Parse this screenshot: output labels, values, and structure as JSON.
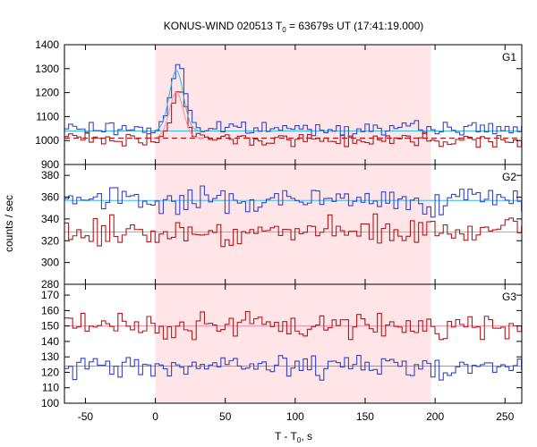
{
  "chart_data": {
    "type": "line",
    "title": "KONUS-WIND 020513 T",
    "title_sub": "0",
    "title_rest": " = 63679s UT (17:41:19.000)",
    "xlabel": "T - T",
    "xlabel_sub": "0",
    "xlabel_rest": ", s",
    "ylabel": "counts / sec",
    "xlim": [
      -65,
      262
    ],
    "x_ticks": [
      "-50",
      "0",
      "50",
      "100",
      "150",
      "200",
      "250"
    ],
    "x_tick_values": [
      -50,
      0,
      50,
      100,
      150,
      200,
      250
    ],
    "highlight_interval": [
      0,
      197
    ],
    "colors": {
      "blue": "#3344cc",
      "red": "#b01a1a",
      "pink": "#ff88aa",
      "cyan": "#33bbee",
      "shade": "#ffe5e8"
    },
    "panels": [
      {
        "label": "G1",
        "ylim": [
          900,
          1400
        ],
        "y_tick_values": [
          900,
          1000,
          1100,
          1200,
          1300,
          1400
        ],
        "y_ticks": [
          "900",
          "1000",
          "1100",
          "1200",
          "1300",
          "1400"
        ],
        "blue_base": 1050,
        "blue_noise": 22,
        "red_base": 1005,
        "red_noise": 24,
        "cyan_level": 1040,
        "pink_level": 1010,
        "peak": {
          "center": 15,
          "blue_height": 280,
          "red_height": 225,
          "width": 5
        }
      },
      {
        "label": "G2",
        "ylim": [
          280,
          390
        ],
        "y_tick_values": [
          280,
          300,
          320,
          340,
          360,
          380
        ],
        "y_ticks": [
          "280",
          "300",
          "320",
          "340",
          "360",
          "380"
        ],
        "blue_base": 357,
        "blue_noise": 10,
        "red_base": 328,
        "red_noise": 10,
        "cyan_level": 357,
        "pink_level": 328
      },
      {
        "label": "G3",
        "ylim": [
          100,
          177
        ],
        "y_tick_values": [
          100,
          110,
          120,
          130,
          140,
          150,
          160,
          170
        ],
        "y_ticks": [
          "100",
          "110",
          "120",
          "130",
          "140",
          "150",
          "160",
          "170"
        ],
        "blue_base": 124,
        "blue_noise": 6,
        "red_base": 150,
        "red_noise": 7,
        "cyan_level": 124,
        "pink_level": 150
      }
    ],
    "grid": false,
    "legend": "none"
  }
}
